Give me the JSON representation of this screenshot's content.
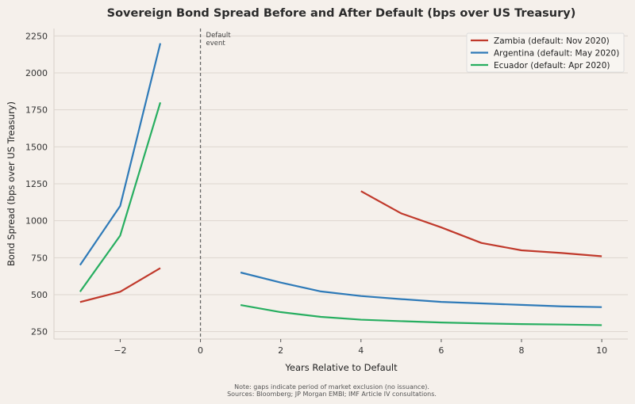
{
  "chart_data": {
    "type": "line",
    "title": "Sovereign Bond Spread Before and After Default (bps over US Treasury)",
    "xlabel": "Years Relative to Default",
    "ylabel": "Bond Spread (bps over US Treasury)",
    "xlim": [
      -3.65,
      10.65
    ],
    "ylim": [
      200,
      2300
    ],
    "xticks": [
      -2,
      0,
      2,
      4,
      6,
      8,
      10
    ],
    "xtick_labels": [
      "−2",
      "0",
      "2",
      "4",
      "6",
      "8",
      "10"
    ],
    "yticks": [
      250,
      500,
      750,
      1000,
      1250,
      1500,
      1750,
      2000,
      2250
    ],
    "grid": "horizontal",
    "legend_position": "top-right",
    "annotation": {
      "x": 0,
      "text": "Default\nevent"
    },
    "series": [
      {
        "name": "Zambia (default: Nov 2020)",
        "color": "#c0392b",
        "segments": [
          {
            "x": [
              -3,
              -2,
              -1
            ],
            "y": [
              450,
              520,
              680
            ]
          },
          {
            "x": [
              4,
              5,
              6,
              7,
              8,
              9,
              10
            ],
            "y": [
              1200,
              1050,
              955,
              850,
              800,
              782,
              760
            ]
          }
        ]
      },
      {
        "name": "Argentina (default: May 2020)",
        "color": "#2e7ab8",
        "segments": [
          {
            "x": [
              -3,
              -2,
              -1
            ],
            "y": [
              700,
              1100,
              2200
            ]
          },
          {
            "x": [
              1,
              2,
              3,
              4,
              5,
              6,
              7,
              8,
              9,
              10
            ],
            "y": [
              650,
              582,
              522,
              491,
              470,
              451,
              441,
              431,
              421,
              416
            ]
          }
        ]
      },
      {
        "name": "Ecuador (default: Apr 2020)",
        "color": "#27ae60",
        "segments": [
          {
            "x": [
              -3,
              -2,
              -1
            ],
            "y": [
              520,
              900,
              1800
            ]
          },
          {
            "x": [
              1,
              2,
              3,
              4,
              5,
              6,
              7,
              8,
              9,
              10
            ],
            "y": [
              430,
              382,
              350,
              331,
              321,
              312,
              306,
              301,
              298,
              294
            ]
          }
        ]
      }
    ],
    "footnote": [
      "Note: gaps indicate period of market exclusion (no issuance).",
      "Sources: Bloomberg; JP Morgan EMBI; IMF Article IV consultations."
    ]
  }
}
